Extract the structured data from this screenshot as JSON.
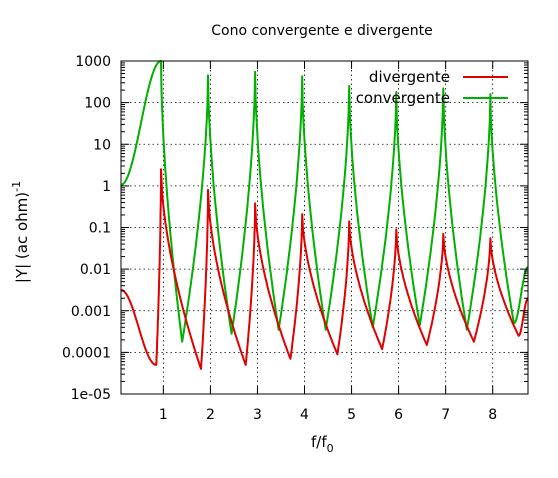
{
  "chart_data": {
    "type": "line",
    "title": "Cono convergente e divergente",
    "xlabel_main": "f/f",
    "xlabel_sub": "0",
    "ylabel_main": "|Y| (ac ohm)",
    "ylabel_sup": "-1",
    "y_scale": "log",
    "xlim": [
      0.1,
      8.75
    ],
    "ylim": [
      1e-05,
      1000
    ],
    "x_ticks": [
      1,
      2,
      3,
      4,
      5,
      6,
      7,
      8
    ],
    "x_tick_labels": [
      "1",
      "2",
      "3",
      "4",
      "5",
      "6",
      "7",
      "8"
    ],
    "y_ticks": [
      1e-05,
      0.0001,
      0.001,
      0.01,
      0.1,
      1,
      10,
      100,
      1000
    ],
    "y_tick_labels": [
      "1e-05",
      "0.0001",
      "0.001",
      "0.01",
      "0.1",
      "1",
      "10",
      "100",
      "1000"
    ],
    "grid": true,
    "legend_position": "top-right",
    "series": [
      {
        "name": "divergente",
        "color": "#e00000",
        "resonance_peaks": [
          {
            "x": 0.95,
            "y": 2.5
          },
          {
            "x": 1.95,
            "y": 0.8
          },
          {
            "x": 2.95,
            "y": 0.38
          },
          {
            "x": 3.95,
            "y": 0.21
          },
          {
            "x": 4.95,
            "y": 0.14
          },
          {
            "x": 5.95,
            "y": 0.09
          },
          {
            "x": 6.95,
            "y": 0.07
          },
          {
            "x": 7.95,
            "y": 0.055
          }
        ],
        "antiresonance_dips": [
          {
            "x": 0.85,
            "y": 5e-05
          },
          {
            "x": 1.8,
            "y": 4e-05
          },
          {
            "x": 2.75,
            "y": 5e-05
          },
          {
            "x": 3.7,
            "y": 7e-05
          },
          {
            "x": 4.7,
            "y": 9e-05
          },
          {
            "x": 5.65,
            "y": 0.00012
          },
          {
            "x": 6.6,
            "y": 0.00015
          },
          {
            "x": 7.6,
            "y": 0.00018
          },
          {
            "x": 8.55,
            "y": 0.00025
          }
        ]
      },
      {
        "name": "convergente",
        "color": "#00b000",
        "resonance_peaks": [
          {
            "x": 0.95,
            "y": 1000
          },
          {
            "x": 1.95,
            "y": 450
          },
          {
            "x": 2.95,
            "y": 550
          },
          {
            "x": 3.95,
            "y": 430
          },
          {
            "x": 4.95,
            "y": 250
          },
          {
            "x": 5.95,
            "y": 180
          },
          {
            "x": 6.95,
            "y": 220
          },
          {
            "x": 7.95,
            "y": 160
          }
        ],
        "antiresonance_dips": [
          {
            "x": 1.4,
            "y": 0.00018
          },
          {
            "x": 2.45,
            "y": 0.00028
          },
          {
            "x": 3.45,
            "y": 0.00035
          },
          {
            "x": 4.45,
            "y": 0.00035
          },
          {
            "x": 5.45,
            "y": 0.0004
          },
          {
            "x": 6.45,
            "y": 0.00045
          },
          {
            "x": 7.45,
            "y": 0.00035
          },
          {
            "x": 8.45,
            "y": 0.0005
          }
        ]
      }
    ]
  }
}
